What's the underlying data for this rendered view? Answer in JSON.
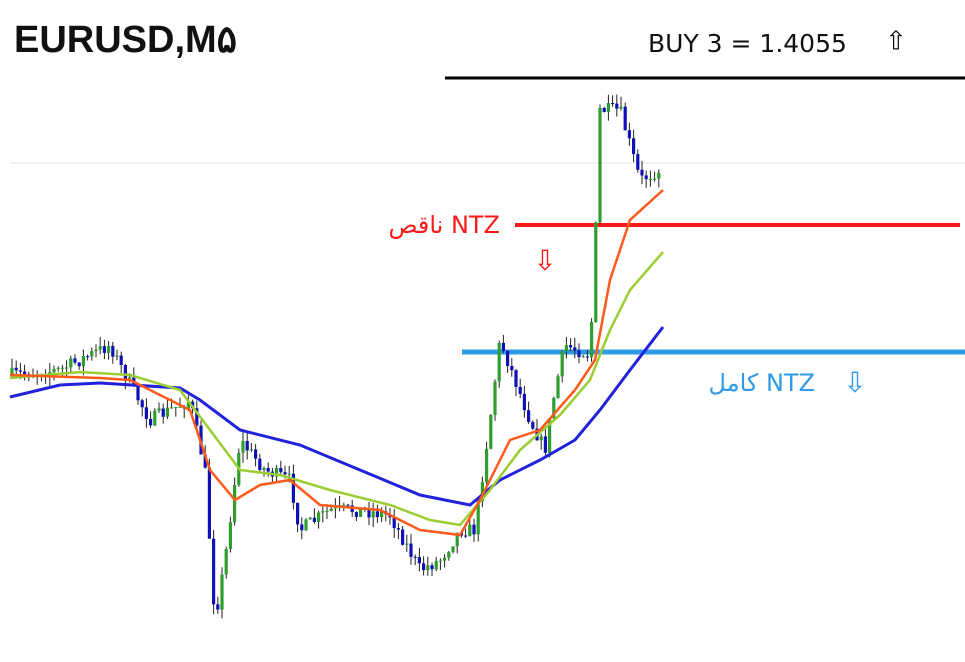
{
  "header": {
    "symbol": "EURUSD,M۵",
    "signal": "BUY 3 = 1.4055",
    "signal_arrow": "⇧"
  },
  "zones": [
    {
      "label": "ناقص NTZ",
      "arrow": "⇩"
    },
    {
      "label": "کامل NTZ",
      "arrow": "⇩"
    }
  ]
}
